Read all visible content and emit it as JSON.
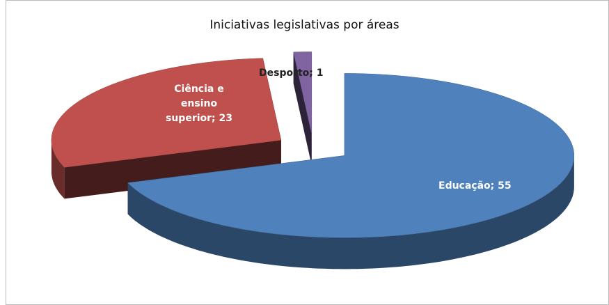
{
  "chart_data": {
    "type": "pie",
    "title": "Iniciativas legislativas por áreas",
    "values": [
      55,
      23,
      1
    ],
    "value_labels": [
      "Educação; 55",
      "Ciência e ensino superior; 23",
      "Desporto; 1"
    ],
    "colors": [
      "#4f81bd",
      "#c0504d",
      "#8064a2"
    ]
  }
}
